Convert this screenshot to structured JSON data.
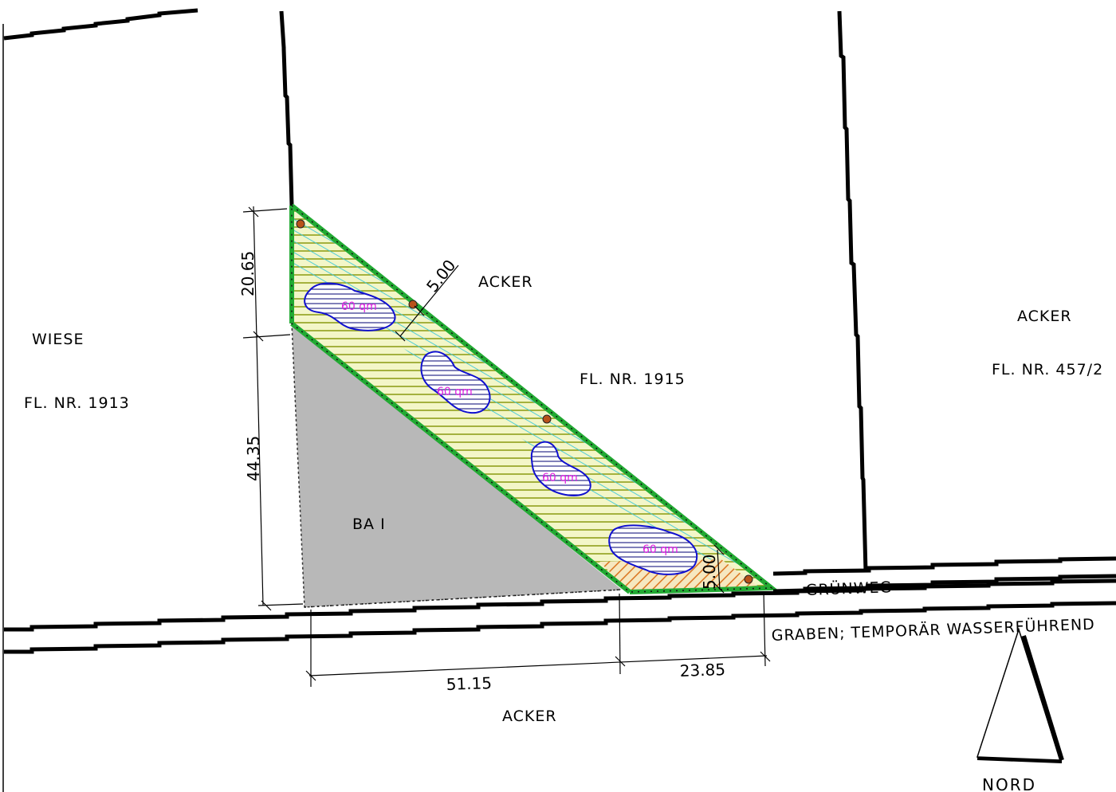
{
  "plan": {
    "labels": {
      "wiese": "WIESE",
      "fl_1913": "FL. NR. 1913",
      "acker_top": "ACKER",
      "fl_1915": "FL. NR. 1915",
      "acker_right": "ACKER",
      "fl_457": "FL. NR. 457/2",
      "ba": "BA I",
      "gruenweg": "GRÜNWEG",
      "graben": "GRABEN; TEMPORÄR WASSERFÜHREND",
      "acker_bottom": "ACKER",
      "nord": "NORD"
    },
    "dimensions": {
      "d1": "20.65",
      "d2": "44.35",
      "d3": "51.15",
      "d4": "23.85",
      "d5": "5.00",
      "d6": "5.00"
    },
    "ponds": [
      "60 qm",
      "60 qm",
      "60 qm",
      "60 qm"
    ],
    "colors": {
      "boundary_green": "#22aa33",
      "strip_fill": "#f3f6c8",
      "strip_hatch": "#8a9a10",
      "blue_hatch": "#3ec8d8",
      "pond_outline": "#1010d0",
      "pond_hatch": "#2a2a8a",
      "building": "#b8b8b8",
      "orange_hatch": "#d86a10",
      "tree": "#b8521a",
      "area_text": "#e020e0"
    }
  }
}
